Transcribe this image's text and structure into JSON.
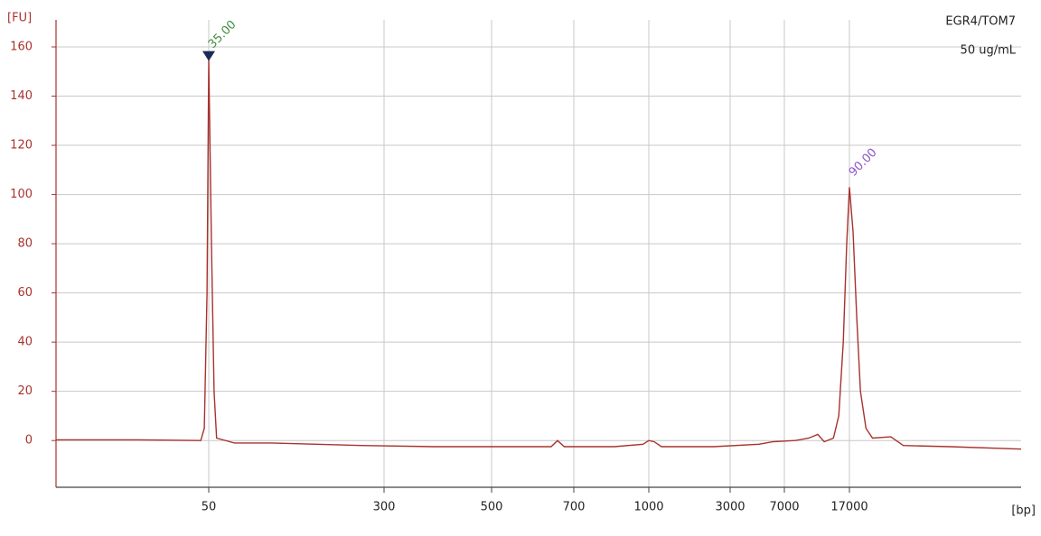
{
  "chart_data": {
    "type": "line",
    "y_label": "[FU]",
    "x_label": "[bp]",
    "annotations": [
      "EGR4/TOM7",
      "50 ug/mL"
    ],
    "xscale": "log",
    "xlim": [
      10,
      170000
    ],
    "xticks": [
      50,
      300,
      500,
      700,
      1000,
      3000,
      7000,
      17000
    ],
    "ylim": [
      -19,
      171
    ],
    "yticks": [
      0,
      20,
      40,
      60,
      80,
      100,
      120,
      140,
      160
    ],
    "grid": true,
    "series": [
      {
        "name": "trace",
        "color": "#a8322d",
        "x": [
          10,
          23.7,
          46,
          47.7,
          49.1,
          50,
          51.4,
          52.8,
          54.2,
          65,
          94.7,
          238,
          380,
          638,
          655,
          673,
          849,
          973,
          1000,
          1076,
          1186,
          2405,
          4713,
          5830,
          8111,
          9781,
          11050,
          12060,
          13660,
          14700,
          15640,
          16390,
          17000,
          17850,
          18760,
          19710,
          21230,
          23150,
          29600,
          35000,
          65000,
          170000
        ],
        "values": [
          0.3,
          0.3,
          0,
          5,
          60,
          155,
          80,
          20,
          1,
          -1,
          -1,
          -2,
          -2.5,
          -2.5,
          0,
          -2.5,
          -2.5,
          -1.5,
          0,
          -0.5,
          -2.5,
          -2.5,
          -1.5,
          -0.5,
          0,
          1,
          2.5,
          -0.5,
          1,
          10,
          40,
          80,
          103,
          85,
          50,
          20,
          5,
          1,
          1.5,
          -2,
          -2.5,
          -3.5
        ]
      }
    ],
    "peaks": [
      {
        "x": 50,
        "y": 155,
        "label": "35.00",
        "color": "#3f8f3f",
        "marker": true
      },
      {
        "x": 17000,
        "y": 103,
        "label": "90.00",
        "color": "#8e55c9",
        "marker": false
      }
    ]
  }
}
